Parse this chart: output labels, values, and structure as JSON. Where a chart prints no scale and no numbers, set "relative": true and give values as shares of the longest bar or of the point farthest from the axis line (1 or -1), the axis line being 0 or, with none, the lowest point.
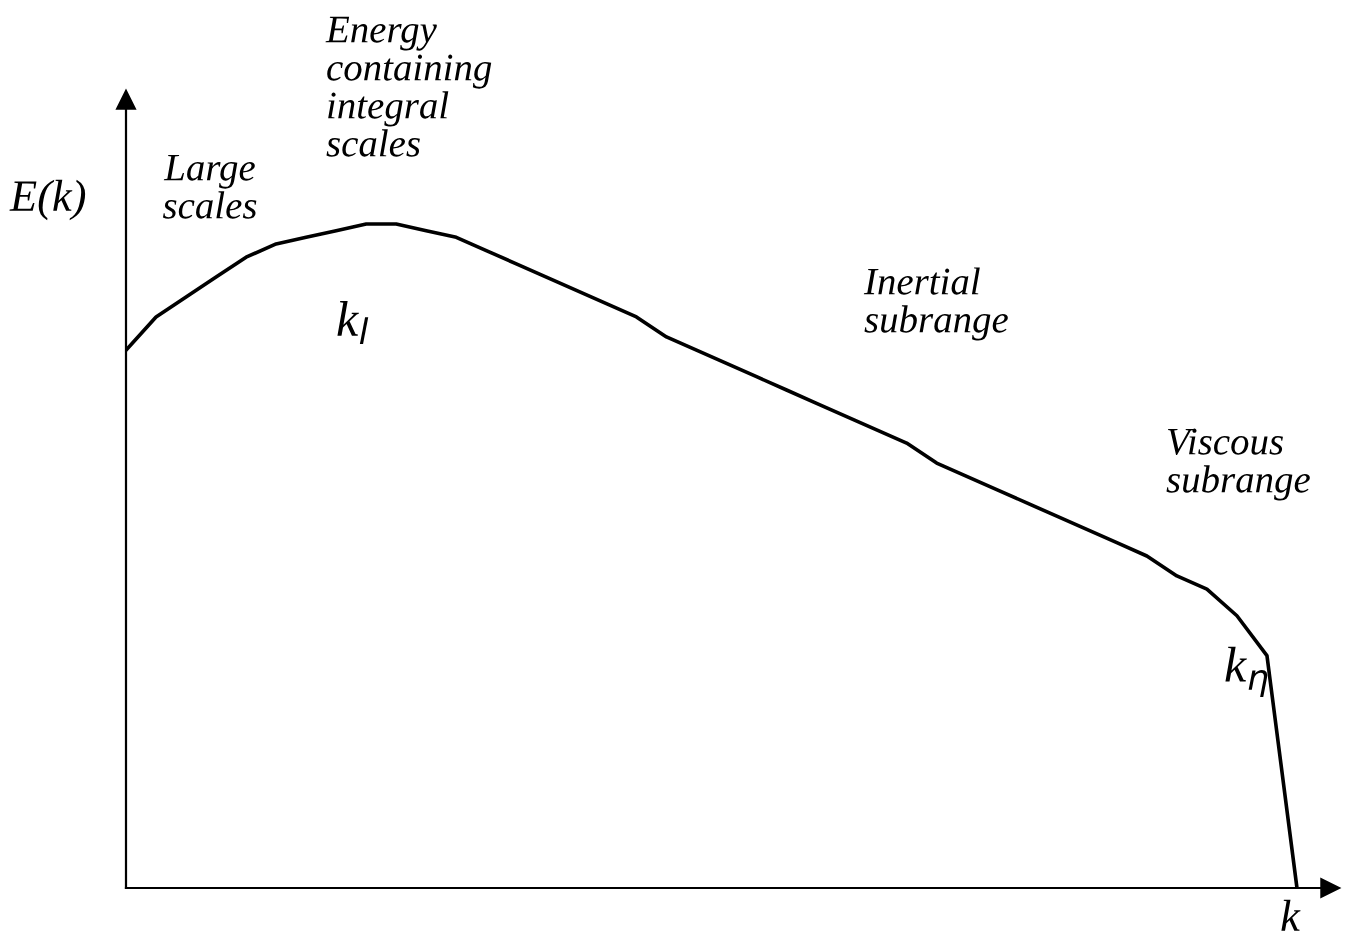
{
  "chart_data": {
    "type": "line",
    "relative": true,
    "xlabel": "k",
    "ylabel": "E(k)",
    "categories": [
      null,
      null,
      null,
      null,
      null,
      null,
      null,
      null,
      null,
      null,
      null,
      null,
      null,
      null,
      null,
      null,
      null,
      null,
      null,
      null,
      null,
      null,
      null,
      null,
      null,
      null,
      null,
      null,
      null,
      null,
      null,
      null,
      null,
      null,
      null,
      null,
      null,
      null,
      null,
      null
    ],
    "series": [
      {
        "color": "#000000",
        "values": [
          0.81,
          0.86,
          0.89,
          0.92,
          0.95,
          0.97,
          0.98,
          0.99,
          1.0,
          1.0,
          0.99,
          0.98,
          0.96,
          0.94,
          0.92,
          0.9,
          0.88,
          0.86,
          0.83,
          0.81,
          0.79,
          0.77,
          0.75,
          0.73,
          0.71,
          0.69,
          0.67,
          0.64,
          0.62,
          0.6,
          0.58,
          0.56,
          0.54,
          0.52,
          0.5,
          0.47,
          0.45,
          0.41,
          0.35,
          0.0
        ]
      }
    ],
    "annotations": [
      "Large\nscales",
      "Energy\ncontaining\nintegral\nscales",
      "Inertial\nsubrange",
      "Viscous\nsubrange",
      "k$_{l}$",
      "k$_{η}$"
    ],
    "marker": "none",
    "line_style": "solid",
    "grid": false,
    "legend": false
  }
}
